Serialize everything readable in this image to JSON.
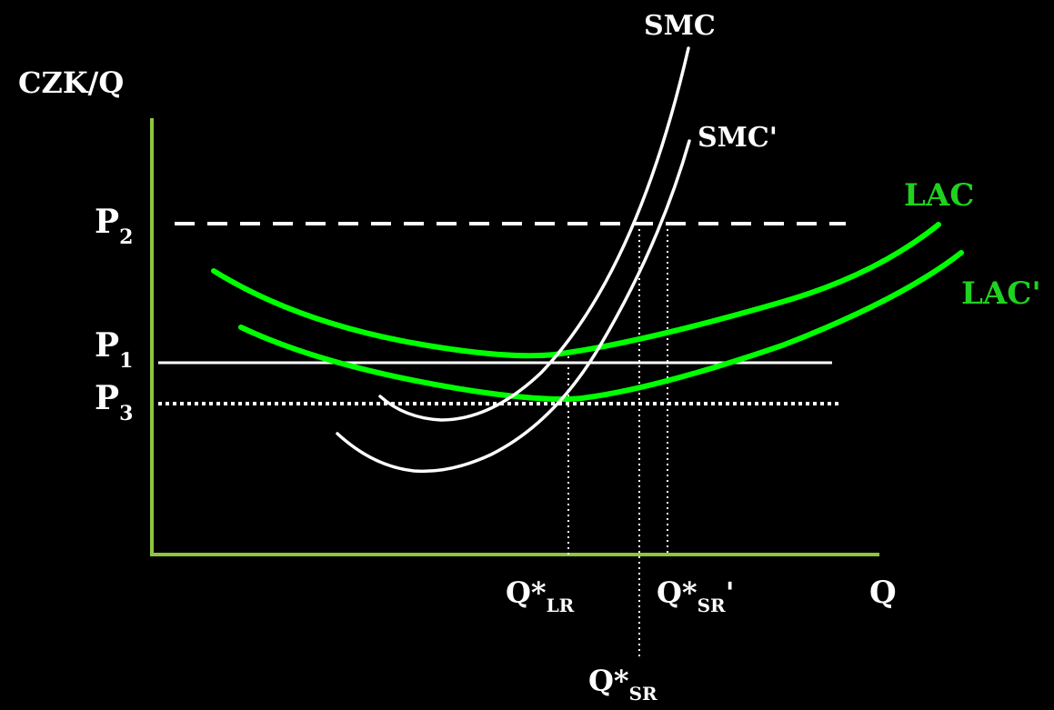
{
  "axes": {
    "y_label": "CZK/Q",
    "x_label": "Q",
    "axis_color": "#8dc63f"
  },
  "curves": {
    "smc": "SMC",
    "smc_prime": "SMC'",
    "lac": "LAC",
    "lac_prime": "LAC'"
  },
  "prices": {
    "p2": {
      "base": "P",
      "sub": "2"
    },
    "p1": {
      "base": "P",
      "sub": "1"
    },
    "p3": {
      "base": "P",
      "sub": "3"
    }
  },
  "quantities": {
    "q_lr": {
      "base": "Q*",
      "sub": "LR",
      "suffix": ""
    },
    "q_sr_prime": {
      "base": "Q*",
      "sub": "SR",
      "suffix": "'"
    },
    "q_sr": {
      "base": "Q*",
      "sub": "SR",
      "suffix": ""
    }
  },
  "colors": {
    "background": "#000000",
    "cost_curves": "#00ff00",
    "lac_labels": "#1fd21f",
    "lines_and_text": "#ffffff"
  }
}
